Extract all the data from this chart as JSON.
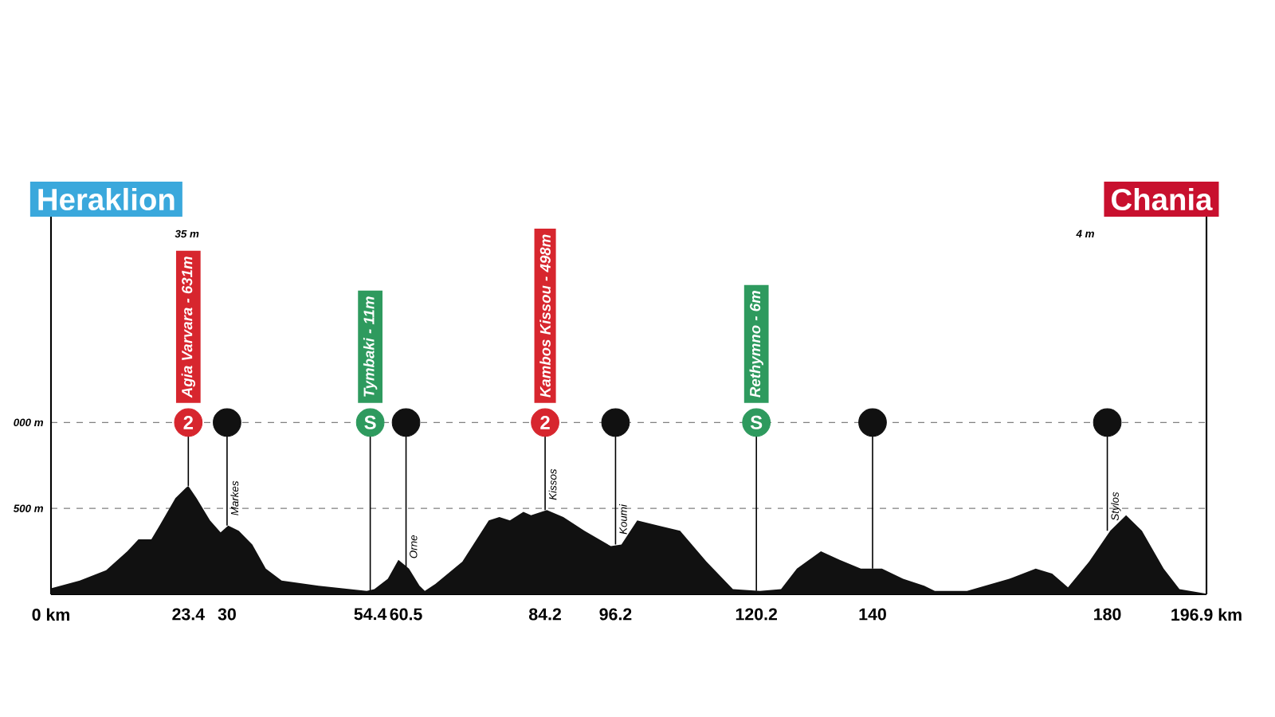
{
  "chart_data": {
    "type": "area",
    "xlim": [
      0,
      196.9
    ],
    "ylim": [
      0,
      2300
    ],
    "xticks": [
      {
        "value": 0,
        "label": "0 km"
      },
      23.4,
      30,
      54.4,
      60.5,
      84.2,
      96.2,
      120.2,
      140,
      180,
      {
        "value": 196.9,
        "label": "196.9 km"
      }
    ],
    "yticks": [
      {
        "value": 500,
        "label": "500 m"
      },
      {
        "value": 1000,
        "label": "000 m"
      }
    ],
    "grid": "y",
    "series": [
      {
        "color": "#111111",
        "x": [
          0,
          4.9,
          9.4,
          13.0,
          14.9,
          17.1,
          18.5,
          21.2,
          23.0,
          23.4,
          24.8,
          27.1,
          28.9,
          30.2,
          32.0,
          34.3,
          36.6,
          39.3,
          45.6,
          53.8,
          55.1,
          57.4,
          59.2,
          61.0,
          62.8,
          63.7,
          65.5,
          70.1,
          74.6,
          76.4,
          78.2,
          80.5,
          81.8,
          84.5,
          87.3,
          90.9,
          95.4,
          97.2,
          99.9,
          103.5,
          107.2,
          111.7,
          116.2,
          120.8,
          124.4,
          127.1,
          131.2,
          134.4,
          138.0,
          141.6,
          145.2,
          148.8,
          150.6,
          156.1,
          163.3,
          167.8,
          170.6,
          173.3,
          176.9,
          180.5,
          183.2,
          185.9,
          189.6,
          192.3,
          196.9
        ],
        "values": [
          35,
          80,
          140,
          250,
          320,
          320,
          400,
          560,
          620,
          631,
          560,
          430,
          360,
          400,
          370,
          290,
          150,
          80,
          50,
          20,
          30,
          90,
          200,
          150,
          50,
          20,
          60,
          190,
          430,
          450,
          430,
          480,
          460,
          490,
          450,
          370,
          280,
          290,
          430,
          400,
          370,
          190,
          30,
          20,
          30,
          150,
          250,
          200,
          150,
          150,
          90,
          50,
          20,
          20,
          90,
          150,
          120,
          40,
          190,
          370,
          460,
          370,
          150,
          30,
          4
        ]
      },
      {
        "type": "scatter",
        "marker": "circle",
        "color": "#d7262e",
        "x": [
          23.4,
          84.2
        ],
        "values": [
          1000,
          1000
        ],
        "errors": [
          [
            631,
            1000
          ],
          [
            490,
            1000
          ]
        ]
      },
      {
        "type": "scatter",
        "marker": "circle",
        "color": "#2e9a5e",
        "x": [
          54.4,
          120.2
        ],
        "values": [
          1000,
          1000
        ],
        "errors": [
          [
            20,
            1000
          ],
          [
            20,
            1000
          ]
        ]
      },
      {
        "type": "scatter",
        "marker": "circle",
        "color": "#111111",
        "x": [
          30,
          60.5,
          96.2,
          140,
          180
        ],
        "values": [
          1000,
          1000,
          1000,
          1000,
          1000
        ],
        "errors": [
          [
            400,
            1000
          ],
          [
            150,
            1000
          ],
          [
            290,
            1000
          ],
          [
            150,
            1000
          ],
          [
            370,
            1000
          ]
        ]
      }
    ],
    "annotations": [
      "Heraklion",
      "35 m",
      "Chania",
      "4 m",
      {
        "text": "Agia Varvara - 631m",
        "x": 23.4,
        "y": 1000
      },
      {
        "text": "Tymbaki - 11m",
        "x": 54.4,
        "y": 1000
      },
      {
        "text": "Kambos Kissou - 498m",
        "x": 84.2,
        "y": 1000
      },
      {
        "text": "Rethymno - 6m",
        "x": 120.2,
        "y": 1000
      },
      {
        "text": "2",
        "x": 23.4,
        "y": 1000
      },
      {
        "text": "S",
        "x": 54.4,
        "y": 1000
      },
      {
        "text": "2",
        "x": 84.2,
        "y": 1000
      },
      {
        "text": "S",
        "x": 120.2,
        "y": 1000
      },
      {
        "text": "Markes",
        "x": 30,
        "y": 400
      },
      {
        "text": "Orne",
        "x": 60.5,
        "y": 150
      },
      {
        "text": "Kissos",
        "x": 84.2,
        "y": 490
      },
      {
        "text": "Koumi",
        "x": 96.2,
        "y": 290
      },
      {
        "text": "Stylos",
        "x": 180,
        "y": 370
      }
    ]
  }
}
